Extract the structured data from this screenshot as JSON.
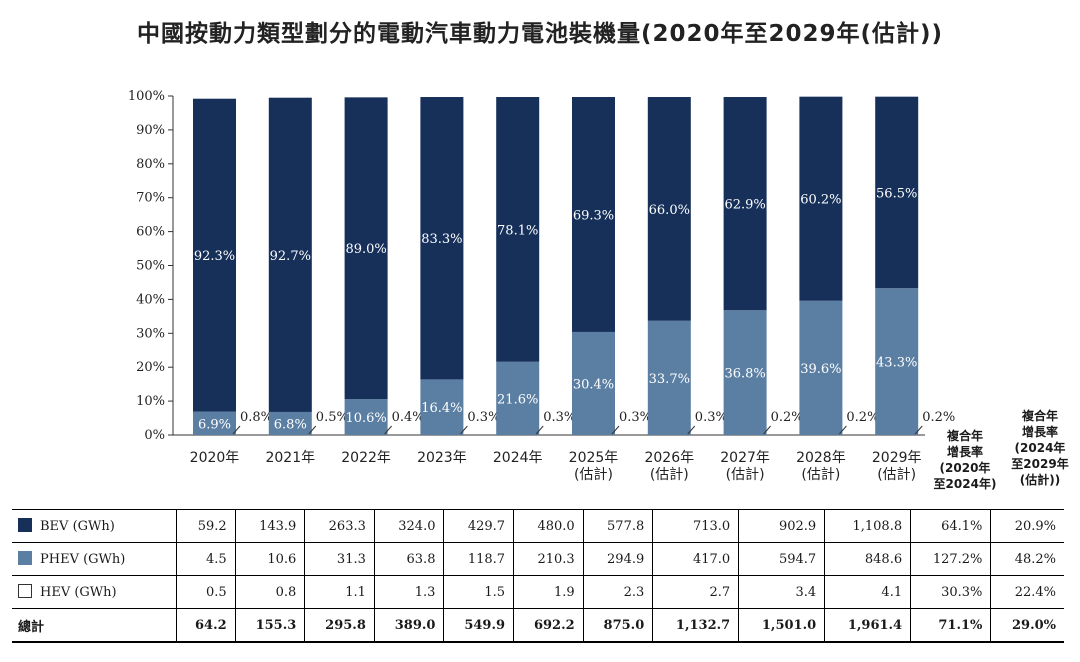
{
  "title": "中國按動力類型劃分的電動汽車動力電池裝機量(2020年至2029年(估計))",
  "colors": {
    "bev": "#16305a",
    "phev": "#5b7fa3"
  },
  "chart_data": {
    "type": "bar",
    "stacked": true,
    "categories": [
      "2020年",
      "2021年",
      "2022年",
      "2023年",
      "2024年",
      "2025年\n(估計)",
      "2026年\n(估計)",
      "2027年\n(估計)",
      "2028年\n(估計)",
      "2029年\n(估計)"
    ],
    "series": [
      {
        "name": "PHEV",
        "values": [
          6.9,
          6.8,
          10.6,
          16.4,
          21.6,
          30.4,
          33.7,
          36.8,
          39.6,
          43.3
        ],
        "labels": [
          "6.9%",
          "6.8%",
          "10.6%",
          "16.4%",
          "21.6%",
          "30.4%",
          "33.7%",
          "36.8%",
          "39.6%",
          "43.3%"
        ]
      },
      {
        "name": "BEV",
        "values": [
          92.3,
          92.7,
          89.0,
          83.3,
          78.1,
          69.3,
          66.0,
          62.9,
          60.2,
          56.5
        ],
        "labels": [
          "92.3%",
          "92.7%",
          "89.0%",
          "83.3%",
          "78.1%",
          "69.3%",
          "66.0%",
          "62.9%",
          "60.2%",
          "56.5%"
        ]
      },
      {
        "name": "HEV",
        "values": [
          0.8,
          0.5,
          0.4,
          0.3,
          0.3,
          0.3,
          0.3,
          0.2,
          0.2,
          0.2
        ],
        "labels": [
          "0.8%",
          "0.5%",
          "0.4%",
          "0.3%",
          "0.3%",
          "0.3%",
          "0.3%",
          "0.2%",
          "0.2%",
          "0.2%"
        ]
      }
    ],
    "y_ticks": [
      "0%",
      "10%",
      "20%",
      "30%",
      "40%",
      "50%",
      "60%",
      "70%",
      "80%",
      "90%",
      "100%"
    ],
    "ylim": [
      0,
      100
    ]
  },
  "cagr_headers": [
    "複合年\n增長率\n(2020年\n至2024年)",
    "複合年\n增長率\n(2024年\n至2029年\n(估計))"
  ],
  "table": {
    "rows": [
      {
        "label": "BEV (GWh)",
        "swatch": "#16305a",
        "values": [
          "59.2",
          "143.9",
          "263.3",
          "324.0",
          "429.7",
          "480.0",
          "577.8",
          "713.0",
          "902.9",
          "1,108.8",
          "64.1%",
          "20.9%"
        ]
      },
      {
        "label": "PHEV (GWh)",
        "swatch": "#5b7fa3",
        "values": [
          "4.5",
          "10.6",
          "31.3",
          "63.8",
          "118.7",
          "210.3",
          "294.9",
          "417.0",
          "594.7",
          "848.6",
          "127.2%",
          "48.2%"
        ]
      },
      {
        "label": "HEV (GWh)",
        "swatch": "#ffffff",
        "values": [
          "0.5",
          "0.8",
          "1.1",
          "1.3",
          "1.5",
          "1.9",
          "2.3",
          "2.7",
          "3.4",
          "4.1",
          "30.3%",
          "22.4%"
        ]
      },
      {
        "label": "總計",
        "swatch": "",
        "values": [
          "64.2",
          "155.3",
          "295.8",
          "389.0",
          "549.9",
          "692.2",
          "875.0",
          "1,132.7",
          "1,501.0",
          "1,961.4",
          "71.1%",
          "29.0%"
        ]
      }
    ]
  }
}
